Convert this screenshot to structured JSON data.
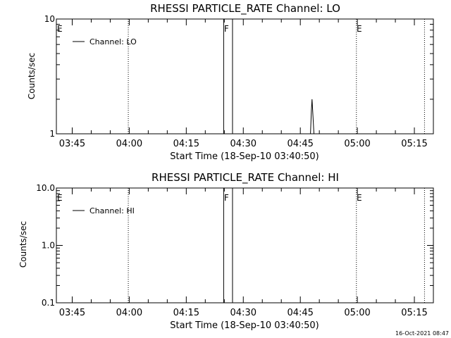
{
  "footer": {
    "timestamp": "16-Oct-2021 08:47"
  },
  "colors": {
    "background": "#ffffff",
    "ink": "#000000"
  },
  "chart_data": [
    {
      "type": "line",
      "title": "RHESSI PARTICLE_RATE Channel: LO",
      "xlabel": "Start Time (18-Sep-10 03:40:50)",
      "ylabel": "Counts/sec",
      "y_scale": "log",
      "ylim": [
        1,
        10
      ],
      "y_ticks": [
        {
          "value": 1,
          "label": "1"
        },
        {
          "value": 10,
          "label": "10"
        }
      ],
      "xlim": [
        "03:40:50",
        "05:20:00"
      ],
      "x_ticks": [
        "03:45",
        "04:00",
        "04:15",
        "04:30",
        "04:45",
        "05:00",
        "05:15"
      ],
      "grid": false,
      "legend": {
        "position": "top-left",
        "entries": [
          "Channel: LO"
        ]
      },
      "markers": [
        {
          "time": "03:40:50",
          "label": "E",
          "style": "dotted"
        },
        {
          "time": "03:59:45",
          "label": "",
          "style": "dotted"
        },
        {
          "time": "04:24:50",
          "label": "F",
          "style": "solid"
        },
        {
          "time": "04:27:10",
          "label": "",
          "style": "solid"
        },
        {
          "time": "04:59:45",
          "label": "E",
          "style": "dotted"
        },
        {
          "time": "05:17:40",
          "label": "",
          "style": "dotted"
        }
      ],
      "series": [
        {
          "name": "Channel: LO",
          "x": [
            "04:47:40",
            "04:47:55",
            "04:48:05",
            "04:48:20",
            "04:48:35"
          ],
          "values": [
            1,
            1.6,
            2.0,
            1.4,
            1
          ]
        }
      ]
    },
    {
      "type": "line",
      "title": "RHESSI PARTICLE_RATE Channel: HI",
      "xlabel": "Start Time (18-Sep-10 03:40:50)",
      "ylabel": "Counts/sec",
      "y_scale": "log",
      "ylim": [
        0.1,
        10
      ],
      "y_ticks": [
        {
          "value": 0.1,
          "label": "0.1"
        },
        {
          "value": 1,
          "label": "1.0"
        },
        {
          "value": 10,
          "label": "10.0"
        }
      ],
      "xlim": [
        "03:40:50",
        "05:20:00"
      ],
      "x_ticks": [
        "03:45",
        "04:00",
        "04:15",
        "04:30",
        "04:45",
        "05:00",
        "05:15"
      ],
      "grid": false,
      "legend": {
        "position": "top-left",
        "entries": [
          "Channel: HI"
        ]
      },
      "markers": [
        {
          "time": "03:40:50",
          "label": "E",
          "style": "dotted"
        },
        {
          "time": "03:59:45",
          "label": "",
          "style": "dotted"
        },
        {
          "time": "04:24:50",
          "label": "F",
          "style": "solid"
        },
        {
          "time": "04:27:10",
          "label": "",
          "style": "solid"
        },
        {
          "time": "04:59:45",
          "label": "E",
          "style": "dotted"
        },
        {
          "time": "05:17:40",
          "label": "",
          "style": "dotted"
        }
      ],
      "series": [
        {
          "name": "Channel: HI",
          "x": [],
          "values": []
        }
      ]
    }
  ]
}
